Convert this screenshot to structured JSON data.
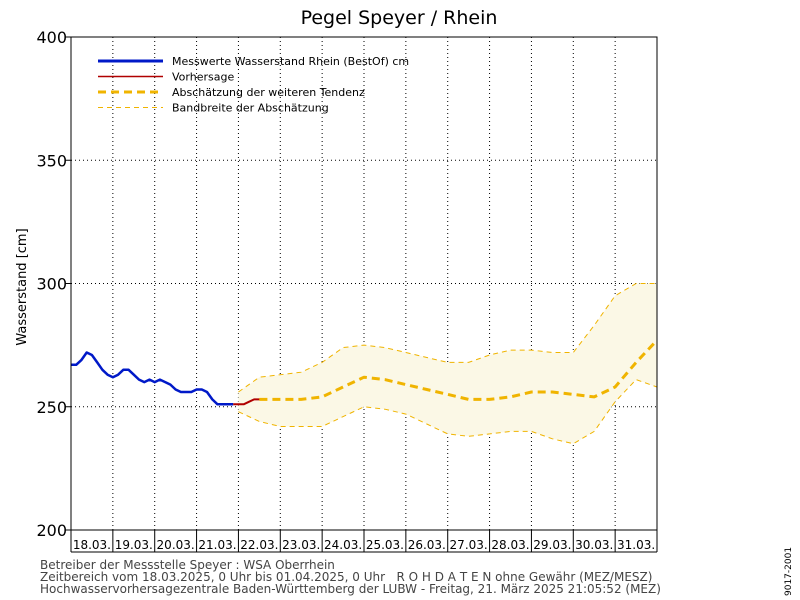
{
  "chart_data": {
    "type": "line",
    "title": "Pegel Speyer / Rhein",
    "ylabel": "Wasserstand [cm]",
    "xlabel": "",
    "ylim": [
      200,
      400
    ],
    "yticks": [
      200,
      250,
      300,
      350,
      400
    ],
    "x_range": [
      "2025-03-18 00:00",
      "2025-04-01 00:00"
    ],
    "x_ticklabels": [
      "18.03.",
      "19.03.",
      "20.03.",
      "21.03.",
      "22.03.",
      "23.03.",
      "24.03.",
      "25.03.",
      "26.03.",
      "27.03.",
      "28.03.",
      "29.03.",
      "30.03.",
      "31.03."
    ],
    "grid": true,
    "legend_position": "top-left",
    "legend": [
      {
        "label": "Messwerte Wasserstand Rhein (BestOf)  cm",
        "color": "#0019c8",
        "style": "solid-thick"
      },
      {
        "label": "Vorhersage",
        "color": "#b00000",
        "style": "solid"
      },
      {
        "label": "Abschätzung der weiteren Tendenz",
        "color": "#f0b400",
        "style": "dashed-thick"
      },
      {
        "label": "Bandbreite der Abschätzung",
        "color": "#f0b400",
        "style": "dashed-thin"
      }
    ],
    "series": [
      {
        "name": "Messwerte Wasserstand Rhein (BestOf)  cm",
        "color": "#0019c8",
        "x": [
          "2025-03-18 00:00",
          "2025-03-18 03:00",
          "2025-03-18 06:00",
          "2025-03-18 09:00",
          "2025-03-18 12:00",
          "2025-03-18 15:00",
          "2025-03-18 18:00",
          "2025-03-18 21:00",
          "2025-03-19 00:00",
          "2025-03-19 03:00",
          "2025-03-19 06:00",
          "2025-03-19 09:00",
          "2025-03-19 12:00",
          "2025-03-19 15:00",
          "2025-03-19 18:00",
          "2025-03-19 21:00",
          "2025-03-20 00:00",
          "2025-03-20 03:00",
          "2025-03-20 06:00",
          "2025-03-20 09:00",
          "2025-03-20 12:00",
          "2025-03-20 15:00",
          "2025-03-20 18:00",
          "2025-03-20 21:00",
          "2025-03-21 00:00",
          "2025-03-21 03:00",
          "2025-03-21 06:00",
          "2025-03-21 09:00",
          "2025-03-21 12:00",
          "2025-03-21 15:00",
          "2025-03-21 18:00",
          "2025-03-21 21:00"
        ],
        "values": [
          267,
          267,
          269,
          272,
          271,
          268,
          265,
          263,
          262,
          263,
          265,
          265,
          263,
          261,
          260,
          261,
          260,
          261,
          260,
          259,
          257,
          256,
          256,
          256,
          257,
          257,
          256,
          253,
          251,
          251,
          251,
          251
        ]
      },
      {
        "name": "Vorhersage",
        "color": "#b00000",
        "x": [
          "2025-03-21 21:00",
          "2025-03-22 00:00",
          "2025-03-22 03:00",
          "2025-03-22 06:00",
          "2025-03-22 09:00",
          "2025-03-22 12:00"
        ],
        "values": [
          251,
          251,
          251,
          252,
          253,
          253
        ]
      },
      {
        "name": "Abschätzung der weiteren Tendenz",
        "color": "#f0b400",
        "x": [
          "2025-03-22 12:00",
          "2025-03-23 00:00",
          "2025-03-23 12:00",
          "2025-03-24 00:00",
          "2025-03-24 12:00",
          "2025-03-25 00:00",
          "2025-03-25 12:00",
          "2025-03-26 00:00",
          "2025-03-26 12:00",
          "2025-03-27 00:00",
          "2025-03-27 12:00",
          "2025-03-28 00:00",
          "2025-03-28 12:00",
          "2025-03-29 00:00",
          "2025-03-29 12:00",
          "2025-03-30 00:00",
          "2025-03-30 12:00",
          "2025-03-31 00:00",
          "2025-03-31 12:00",
          "2025-04-01 00:00"
        ],
        "values": [
          253,
          253,
          253,
          254,
          258,
          262,
          261,
          259,
          257,
          255,
          253,
          253,
          254,
          256,
          256,
          255,
          254,
          258,
          268,
          277
        ]
      }
    ],
    "band": {
      "name": "Bandbreite der Abschätzung",
      "x": [
        "2025-03-22 00:00",
        "2025-03-22 12:00",
        "2025-03-23 00:00",
        "2025-03-23 12:00",
        "2025-03-24 00:00",
        "2025-03-24 12:00",
        "2025-03-25 00:00",
        "2025-03-25 12:00",
        "2025-03-26 00:00",
        "2025-03-26 12:00",
        "2025-03-27 00:00",
        "2025-03-27 12:00",
        "2025-03-28 00:00",
        "2025-03-28 12:00",
        "2025-03-29 00:00",
        "2025-03-29 12:00",
        "2025-03-30 00:00",
        "2025-03-30 12:00",
        "2025-03-31 00:00",
        "2025-03-31 12:00",
        "2025-04-01 00:00"
      ],
      "upper": [
        256,
        262,
        263,
        264,
        268,
        274,
        275,
        274,
        272,
        270,
        268,
        268,
        271,
        273,
        273,
        272,
        272,
        283,
        295,
        300,
        300
      ],
      "lower": [
        248,
        244,
        242,
        242,
        242,
        246,
        250,
        249,
        247,
        243,
        239,
        238,
        239,
        240,
        240,
        237,
        235,
        240,
        252,
        261,
        258
      ]
    }
  },
  "footer": {
    "line1": "Betreiber der Messstelle Speyer : WSA Oberrhein",
    "line2": "Zeitbereich vom 18.03.2025, 0 Uhr bis 01.04.2025, 0 Uhr   R O H D A T E N ohne Gewähr (MEZ/MESZ)",
    "line3": "Hochwasservorhersagezentrale Baden-Württemberg der LUBW - Freitag, 21. März 2025 21:05:52 (MEZ)"
  },
  "code": "9017-2001"
}
